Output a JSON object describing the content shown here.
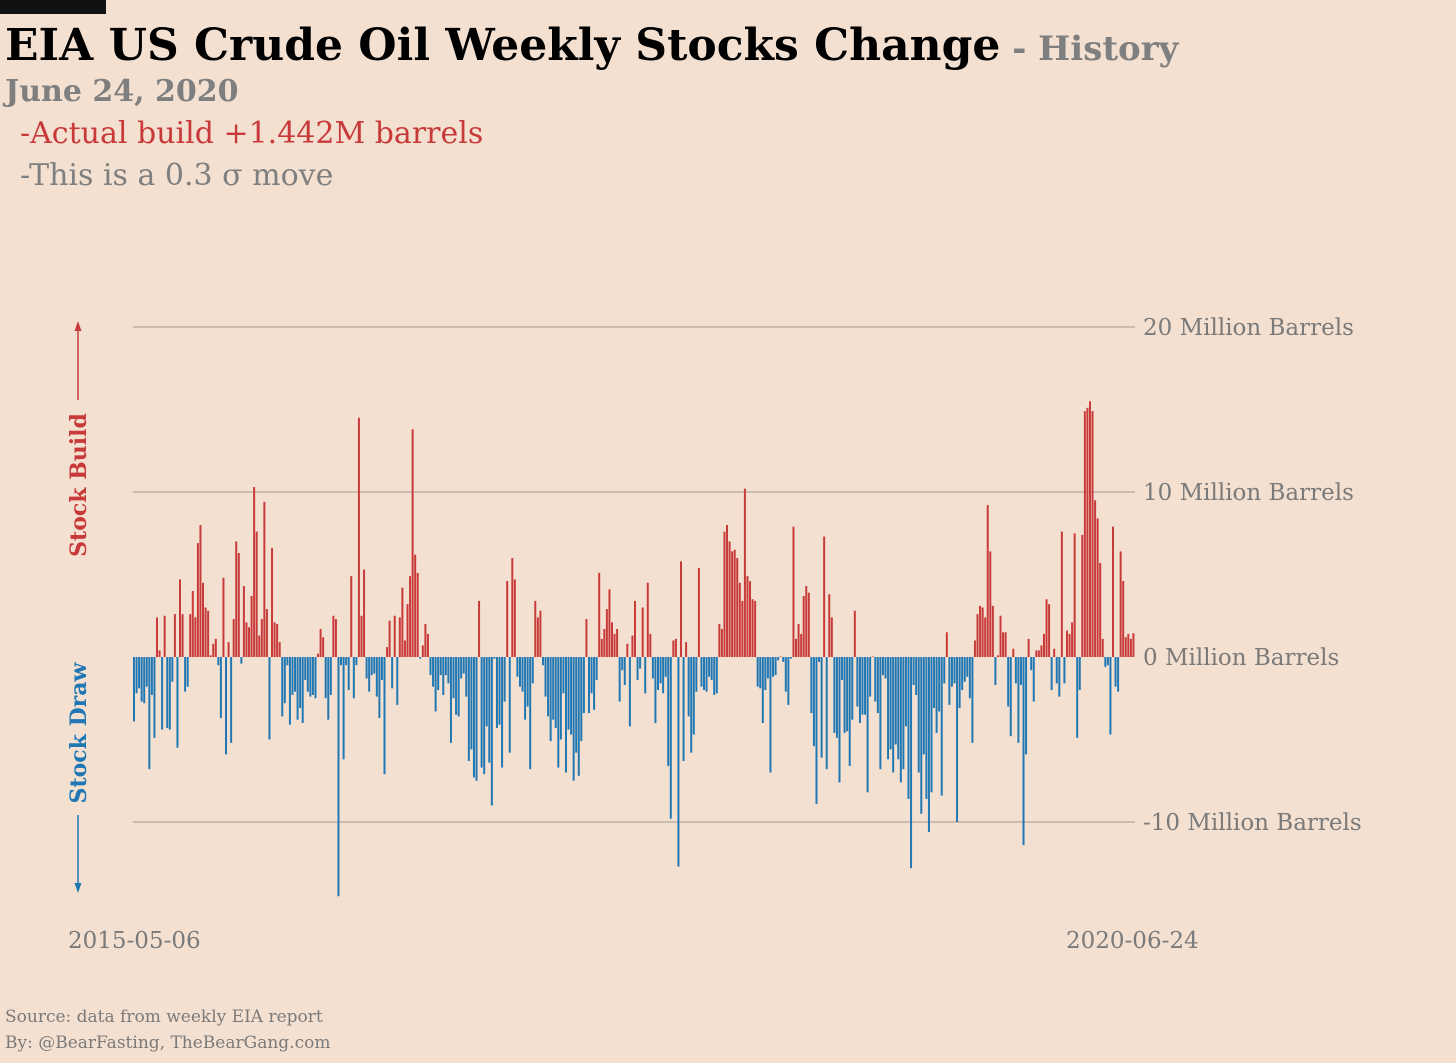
{
  "title": "EIA US Crude Oil Weekly Stocks Change",
  "title_sep": " - ",
  "title_suffix": "History",
  "date": "June 24, 2020",
  "note_build": "-Actual build +1.442M barrels",
  "note_sigma": "-This is a 0.3 σ move",
  "side_up": "Stock Build",
  "side_down": "Stock Draw",
  "source": "Source: data from  weekly EIA report",
  "byline": "By: @BearFasting, TheBearGang.com",
  "colors": {
    "build": "#c83a3a",
    "draw": "#1f77b4",
    "grid": "#a09890",
    "background": "#f4e0d0"
  },
  "chart_data": {
    "type": "bar",
    "x_start": "2015-05-06",
    "x_end": "2020-06-24",
    "ylim": [
      -15,
      20
    ],
    "y_ticks": [
      {
        "value": 20,
        "label": "20 Million Barrels"
      },
      {
        "value": 10,
        "label": "10 Million Barrels"
      },
      {
        "value": 0,
        "label": "0 Million Barrels"
      },
      {
        "value": -10,
        "label": "-10 Million Barrels"
      }
    ],
    "x_tick_labels": [
      "2015-05-06",
      "2020-06-24"
    ],
    "units": "Million Barrels",
    "values": [
      -3.9,
      -2.2,
      -1.9,
      -2.7,
      -2.8,
      -1.8,
      -6.8,
      -2.3,
      -4.9,
      2.4,
      0.4,
      -4.4,
      2.5,
      -4.3,
      -4.4,
      -1.5,
      2.6,
      -5.5,
      4.7,
      2.6,
      -2.1,
      -1.8,
      2.6,
      4.0,
      2.4,
      6.9,
      8.0,
      4.5,
      3.0,
      2.8,
      0.1,
      0.8,
      1.1,
      -0.5,
      -3.7,
      4.8,
      -5.9,
      0.9,
      -5.2,
      2.3,
      7.0,
      6.3,
      -0.4,
      4.3,
      2.1,
      1.8,
      3.7,
      10.3,
      7.6,
      1.3,
      2.3,
      9.4,
      2.9,
      -5.0,
      6.6,
      2.1,
      2.0,
      0.9,
      -3.6,
      -2.8,
      -0.5,
      -4.1,
      -2.3,
      -2.1,
      -3.8,
      -3.1,
      -4.0,
      -1.4,
      -2.1,
      -2.4,
      -2.3,
      -2.5,
      0.2,
      1.7,
      1.2,
      -2.5,
      -3.8,
      -2.3,
      2.5,
      2.3,
      -14.5,
      -0.5,
      -6.2,
      -0.5,
      -2.0,
      4.9,
      -2.5,
      -0.5,
      14.5,
      2.5,
      5.3,
      -1.3,
      -2.1,
      -1.1,
      -1.0,
      -2.4,
      -3.7,
      -1.4,
      -7.1,
      0.6,
      2.2,
      -1.9,
      2.5,
      -2.9,
      2.4,
      4.2,
      1.0,
      3.2,
      4.9,
      13.8,
      6.2,
      5.1,
      -0.1,
      0.7,
      2.0,
      1.4,
      -1.1,
      -1.8,
      -3.3,
      -2.0,
      -1.1,
      -2.3,
      -1.1,
      -1.6,
      -5.2,
      -2.5,
      -3.5,
      -3.6,
      -1.3,
      -1.0,
      -2.4,
      -6.3,
      -5.6,
      -7.3,
      -7.5,
      3.4,
      -6.7,
      -7.1,
      -4.2,
      -6.4,
      -9.0,
      -0.1,
      -4.3,
      -4.1,
      -6.7,
      -2.7,
      4.6,
      -5.8,
      6.0,
      4.7,
      -1.2,
      -1.8,
      -2.1,
      -3.8,
      -3.0,
      -6.8,
      -1.6,
      3.4,
      2.4,
      2.8,
      -0.5,
      -2.4,
      -3.6,
      -5.1,
      -3.8,
      -4.3,
      -6.7,
      -5.0,
      -2.2,
      -7.0,
      -4.4,
      -4.7,
      -7.5,
      -5.8,
      -7.2,
      -5.1,
      -3.4,
      2.3,
      -3.4,
      -2.2,
      -3.2,
      -1.4,
      5.1,
      1.1,
      1.7,
      2.9,
      4.1,
      2.1,
      1.4,
      1.7,
      -2.7,
      -0.8,
      -1.7,
      0.8,
      -4.2,
      1.3,
      3.4,
      -1.4,
      -0.7,
      3.0,
      -2.2,
      4.5,
      1.4,
      -1.3,
      -4.0,
      -2.0,
      -1.6,
      -2.2,
      -1.2,
      -6.6,
      -9.8,
      1.0,
      1.1,
      -12.7,
      5.8,
      -6.3,
      0.9,
      -3.6,
      -5.8,
      -4.7,
      -2.1,
      5.4,
      -1.8,
      -2.0,
      -2.1,
      -1.2,
      -1.4,
      -2.3,
      -2.2,
      2.0,
      1.7,
      7.6,
      8.0,
      7.0,
      6.4,
      6.5,
      6.0,
      4.5,
      3.4,
      10.2,
      4.9,
      4.6,
      3.5,
      3.4,
      -1.8,
      -1.9,
      -4.0,
      -2.0,
      -1.3,
      -7.0,
      -1.2,
      -1.1,
      -0.2,
      0.0,
      -0.3,
      -2.1,
      -2.9,
      -0.1,
      7.9,
      1.1,
      2.0,
      1.4,
      3.7,
      4.3,
      3.9,
      -3.4,
      -5.4,
      -8.9,
      -0.3,
      -6.1,
      7.3,
      -6.8,
      3.8,
      2.4,
      -4.6,
      -4.9,
      -7.6,
      -1.4,
      -4.6,
      -4.5,
      -6.6,
      -3.8,
      2.8,
      -3.0,
      -4.0,
      -3.5,
      -3.5,
      -8.2,
      -2.4,
      0.0,
      -2.7,
      -3.4,
      -6.8,
      -1.1,
      -1.3,
      -6.2,
      -5.6,
      -7.0,
      -5.3,
      -6.2,
      -7.6,
      -6.8,
      -4.2,
      -8.6,
      -12.8,
      -1.7,
      -2.3,
      -7.0,
      -9.5,
      -5.9,
      -8.6,
      -10.6,
      -8.2,
      -3.1,
      -4.6,
      -3.3,
      -8.4,
      -1.6,
      1.5,
      -2.9,
      -1.8,
      -1.6,
      -10.0,
      -3.1,
      -2.0,
      -1.5,
      -1.2,
      -2.5,
      -5.2,
      1.0,
      2.6,
      3.1,
      3.0,
      2.4,
      9.2,
      6.4,
      3.1,
      -1.7,
      0.1,
      2.5,
      1.5,
      1.5,
      -3.0,
      -4.8,
      0.5,
      -1.6,
      -5.2,
      -1.7,
      -11.4,
      -5.9,
      1.1,
      -0.8,
      -2.7,
      0.4,
      0.4,
      0.7,
      1.4,
      3.5,
      3.2,
      -2.0,
      0.5,
      -1.6,
      -2.4,
      7.6,
      -1.6,
      1.6,
      1.4,
      2.1,
      7.5,
      -4.9,
      -2.0,
      7.4,
      14.9,
      15.1,
      15.5,
      14.9,
      9.5,
      8.4,
      5.7,
      1.1,
      -0.6,
      -0.5,
      -4.7,
      7.9,
      -1.8,
      -2.1,
      6.4,
      4.6,
      1.2,
      1.4,
      1.1,
      1.442
    ]
  }
}
